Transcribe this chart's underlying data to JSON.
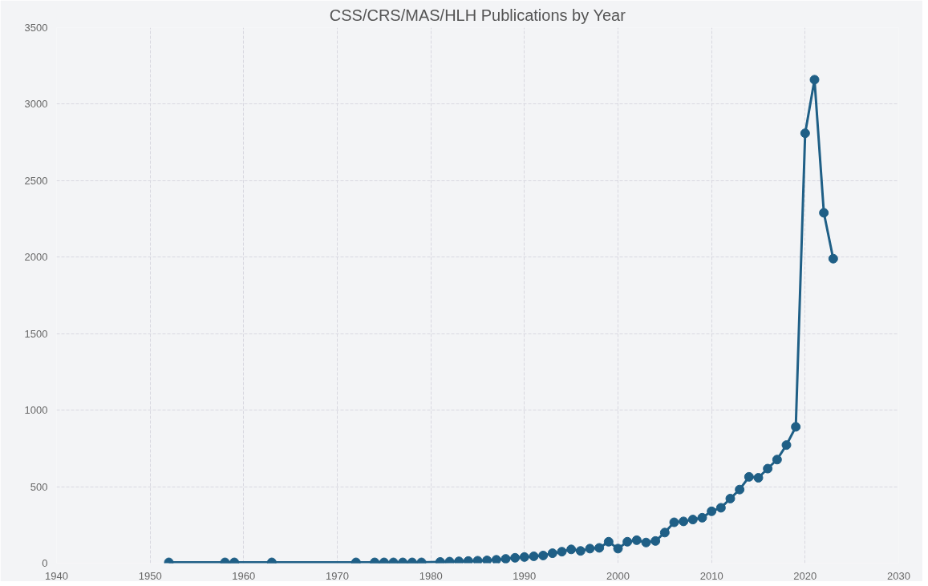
{
  "chart_data": {
    "type": "line",
    "title": "CSS/CRS/MAS/HLH Publications by Year",
    "x": [
      1952,
      1958,
      1959,
      1963,
      1972,
      1974,
      1975,
      1976,
      1977,
      1978,
      1979,
      1981,
      1982,
      1983,
      1984,
      1985,
      1986,
      1987,
      1988,
      1989,
      1990,
      1991,
      1992,
      1993,
      1994,
      1995,
      1996,
      1997,
      1998,
      1999,
      2000,
      2001,
      2002,
      2003,
      2004,
      2005,
      2006,
      2007,
      2008,
      2009,
      2010,
      2011,
      2012,
      2013,
      2014,
      2015,
      2016,
      2017,
      2018,
      2019,
      2020,
      2021,
      2022,
      2023
    ],
    "series": [
      {
        "color": "#1f5f86",
        "values": [
          5,
          5,
          5,
          5,
          5,
          5,
          5,
          5,
          5,
          5,
          5,
          8,
          10,
          12,
          14,
          16,
          18,
          22,
          28,
          35,
          40,
          45,
          50,
          65,
          75,
          90,
          80,
          95,
          100,
          140,
          95,
          140,
          150,
          135,
          145,
          200,
          267,
          273,
          285,
          297,
          339,
          362,
          422,
          481,
          564,
          558,
          618,
          677,
          772,
          891,
          2810,
          3160,
          2290,
          1990
        ]
      }
    ],
    "xlim": [
      1940,
      2030
    ],
    "xticks": [
      1940,
      1950,
      1960,
      1970,
      1980,
      1990,
      2000,
      2010,
      2020,
      2030
    ],
    "ylim": [
      0,
      3500
    ],
    "yticks": [
      0,
      500,
      1000,
      1500,
      2000,
      2500,
      3000,
      3500
    ],
    "grid": true,
    "marker": "circle",
    "line_style": "solid"
  }
}
